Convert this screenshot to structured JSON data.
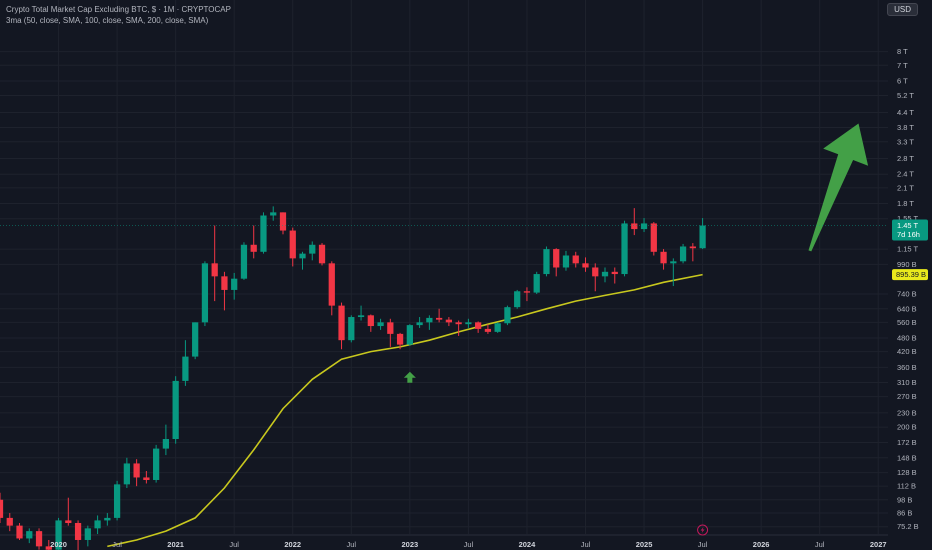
{
  "header": {
    "title": "Crypto Total Market Cap Excluding BTC, $ · 1M · CRYPTOCAP",
    "indicator": "3ma (50, close, SMA, 100, close, SMA, 200, close, SMA)",
    "currency_button": "USD"
  },
  "colors": {
    "background": "#131722",
    "up": "#089981",
    "down": "#f23645",
    "ma": "#c8c81e",
    "arrow": "#43a047"
  },
  "chart_data": {
    "type": "candlestick",
    "y_scale": "log",
    "y_unit": "USD",
    "y_range": [
      70,
      10500
    ],
    "x_range": [
      "2019-07",
      "2027-02"
    ],
    "y_ticks": [
      {
        "label": "8 T",
        "value": 8000
      },
      {
        "label": "7 T",
        "value": 7000
      },
      {
        "label": "6 T",
        "value": 6000
      },
      {
        "label": "5.2 T",
        "value": 5200
      },
      {
        "label": "4.4 T",
        "value": 4400
      },
      {
        "label": "3.8 T",
        "value": 3800
      },
      {
        "label": "3.3 T",
        "value": 3300
      },
      {
        "label": "2.8 T",
        "value": 2800
      },
      {
        "label": "2.4 T",
        "value": 2400
      },
      {
        "label": "2.1 T",
        "value": 2100
      },
      {
        "label": "1.8 T",
        "value": 1800
      },
      {
        "label": "1.55 T",
        "value": 1550
      },
      {
        "label": "1.15 T",
        "value": 1150
      },
      {
        "label": "990 B",
        "value": 990
      },
      {
        "label": "740 B",
        "value": 740
      },
      {
        "label": "640 B",
        "value": 640
      },
      {
        "label": "560 B",
        "value": 560
      },
      {
        "label": "480 B",
        "value": 480
      },
      {
        "label": "420 B",
        "value": 420
      },
      {
        "label": "360 B",
        "value": 360
      },
      {
        "label": "310 B",
        "value": 310
      },
      {
        "label": "270 B",
        "value": 270
      },
      {
        "label": "230 B",
        "value": 230
      },
      {
        "label": "200 B",
        "value": 200
      },
      {
        "label": "172 B",
        "value": 172
      },
      {
        "label": "148 B",
        "value": 148
      },
      {
        "label": "128 B",
        "value": 128
      },
      {
        "label": "112 B",
        "value": 112
      },
      {
        "label": "98 B",
        "value": 98
      },
      {
        "label": "86 B",
        "value": 86
      },
      {
        "label": "75.2 B",
        "value": 75.2
      }
    ],
    "x_ticks": [
      {
        "label": "2020",
        "year": 2020,
        "month": 1,
        "bold": true
      },
      {
        "label": "Jul",
        "year": 2020,
        "month": 7,
        "bold": false
      },
      {
        "label": "2021",
        "year": 2021,
        "month": 1,
        "bold": true
      },
      {
        "label": "Jul",
        "year": 2021,
        "month": 7,
        "bold": false
      },
      {
        "label": "2022",
        "year": 2022,
        "month": 1,
        "bold": true
      },
      {
        "label": "Jul",
        "year": 2022,
        "month": 7,
        "bold": false
      },
      {
        "label": "2023",
        "year": 2023,
        "month": 1,
        "bold": true
      },
      {
        "label": "Jul",
        "year": 2023,
        "month": 7,
        "bold": false
      },
      {
        "label": "2024",
        "year": 2024,
        "month": 1,
        "bold": true
      },
      {
        "label": "Jul",
        "year": 2024,
        "month": 7,
        "bold": false
      },
      {
        "label": "2025",
        "year": 2025,
        "month": 1,
        "bold": true
      },
      {
        "label": "Jul",
        "year": 2025,
        "month": 7,
        "bold": false
      },
      {
        "label": "2026",
        "year": 2026,
        "month": 1,
        "bold": true
      },
      {
        "label": "Jul",
        "year": 2026,
        "month": 7,
        "bold": false
      },
      {
        "label": "2027",
        "year": 2027,
        "month": 1,
        "bold": true
      }
    ],
    "candles": [
      {
        "year": 2019,
        "month": 7,
        "open": 98,
        "high": 105,
        "low": 78,
        "close": 82
      },
      {
        "year": 2019,
        "month": 8,
        "open": 82,
        "high": 86,
        "low": 72,
        "close": 76
      },
      {
        "year": 2019,
        "month": 9,
        "open": 76,
        "high": 78,
        "low": 66,
        "close": 67
      },
      {
        "year": 2019,
        "month": 10,
        "open": 67,
        "high": 74,
        "low": 64,
        "close": 72
      },
      {
        "year": 2019,
        "month": 11,
        "open": 72,
        "high": 74,
        "low": 60,
        "close": 62
      },
      {
        "year": 2019,
        "month": 12,
        "open": 62,
        "high": 66,
        "low": 58,
        "close": 60
      },
      {
        "year": 2020,
        "month": 1,
        "open": 60,
        "high": 82,
        "low": 58,
        "close": 80
      },
      {
        "year": 2020,
        "month": 2,
        "open": 80,
        "high": 100,
        "low": 76,
        "close": 78
      },
      {
        "year": 2020,
        "month": 3,
        "open": 78,
        "high": 80,
        "low": 50,
        "close": 66
      },
      {
        "year": 2020,
        "month": 4,
        "open": 66,
        "high": 76,
        "low": 62,
        "close": 74
      },
      {
        "year": 2020,
        "month": 5,
        "open": 74,
        "high": 84,
        "low": 70,
        "close": 80
      },
      {
        "year": 2020,
        "month": 6,
        "open": 80,
        "high": 86,
        "low": 76,
        "close": 82
      },
      {
        "year": 2020,
        "month": 7,
        "open": 82,
        "high": 118,
        "low": 80,
        "close": 114
      },
      {
        "year": 2020,
        "month": 8,
        "open": 114,
        "high": 148,
        "low": 110,
        "close": 140
      },
      {
        "year": 2020,
        "month": 9,
        "open": 140,
        "high": 146,
        "low": 112,
        "close": 122
      },
      {
        "year": 2020,
        "month": 10,
        "open": 122,
        "high": 130,
        "low": 115,
        "close": 119
      },
      {
        "year": 2020,
        "month": 11,
        "open": 119,
        "high": 168,
        "low": 116,
        "close": 162
      },
      {
        "year": 2020,
        "month": 12,
        "open": 162,
        "high": 205,
        "low": 152,
        "close": 178
      },
      {
        "year": 2021,
        "month": 1,
        "open": 178,
        "high": 330,
        "low": 170,
        "close": 315
      },
      {
        "year": 2021,
        "month": 2,
        "open": 315,
        "high": 470,
        "low": 300,
        "close": 400
      },
      {
        "year": 2021,
        "month": 3,
        "open": 400,
        "high": 560,
        "low": 390,
        "close": 560
      },
      {
        "year": 2021,
        "month": 4,
        "open": 560,
        "high": 1020,
        "low": 540,
        "close": 1000
      },
      {
        "year": 2021,
        "month": 5,
        "open": 1000,
        "high": 1450,
        "low": 690,
        "close": 880
      },
      {
        "year": 2021,
        "month": 6,
        "open": 880,
        "high": 920,
        "low": 630,
        "close": 770
      },
      {
        "year": 2021,
        "month": 7,
        "open": 770,
        "high": 910,
        "low": 700,
        "close": 860
      },
      {
        "year": 2021,
        "month": 8,
        "open": 860,
        "high": 1230,
        "low": 850,
        "close": 1200
      },
      {
        "year": 2021,
        "month": 9,
        "open": 1200,
        "high": 1450,
        "low": 1050,
        "close": 1120
      },
      {
        "year": 2021,
        "month": 10,
        "open": 1120,
        "high": 1650,
        "low": 1100,
        "close": 1600
      },
      {
        "year": 2021,
        "month": 11,
        "open": 1600,
        "high": 1750,
        "low": 1520,
        "close": 1650
      },
      {
        "year": 2021,
        "month": 12,
        "open": 1650,
        "high": 1650,
        "low": 1330,
        "close": 1380
      },
      {
        "year": 2022,
        "month": 1,
        "open": 1380,
        "high": 1420,
        "low": 970,
        "close": 1050
      },
      {
        "year": 2022,
        "month": 2,
        "open": 1050,
        "high": 1120,
        "low": 940,
        "close": 1100
      },
      {
        "year": 2022,
        "month": 3,
        "open": 1100,
        "high": 1240,
        "low": 1030,
        "close": 1200
      },
      {
        "year": 2022,
        "month": 4,
        "open": 1200,
        "high": 1220,
        "low": 980,
        "close": 1000
      },
      {
        "year": 2022,
        "month": 5,
        "open": 1000,
        "high": 1020,
        "low": 600,
        "close": 660
      },
      {
        "year": 2022,
        "month": 6,
        "open": 660,
        "high": 680,
        "low": 430,
        "close": 470
      },
      {
        "year": 2022,
        "month": 7,
        "open": 470,
        "high": 600,
        "low": 460,
        "close": 590
      },
      {
        "year": 2022,
        "month": 8,
        "open": 590,
        "high": 660,
        "low": 570,
        "close": 600
      },
      {
        "year": 2022,
        "month": 9,
        "open": 600,
        "high": 605,
        "low": 510,
        "close": 540
      },
      {
        "year": 2022,
        "month": 10,
        "open": 540,
        "high": 580,
        "low": 520,
        "close": 560
      },
      {
        "year": 2022,
        "month": 11,
        "open": 560,
        "high": 580,
        "low": 440,
        "close": 500
      },
      {
        "year": 2022,
        "month": 12,
        "open": 500,
        "high": 505,
        "low": 430,
        "close": 450
      },
      {
        "year": 2023,
        "month": 1,
        "open": 450,
        "high": 550,
        "low": 445,
        "close": 545
      },
      {
        "year": 2023,
        "month": 2,
        "open": 545,
        "high": 590,
        "low": 530,
        "close": 560
      },
      {
        "year": 2023,
        "month": 3,
        "open": 560,
        "high": 600,
        "low": 520,
        "close": 585
      },
      {
        "year": 2023,
        "month": 4,
        "open": 585,
        "high": 640,
        "low": 560,
        "close": 575
      },
      {
        "year": 2023,
        "month": 5,
        "open": 575,
        "high": 590,
        "low": 540,
        "close": 560
      },
      {
        "year": 2023,
        "month": 6,
        "open": 560,
        "high": 570,
        "low": 490,
        "close": 550
      },
      {
        "year": 2023,
        "month": 7,
        "open": 550,
        "high": 580,
        "low": 530,
        "close": 560
      },
      {
        "year": 2023,
        "month": 8,
        "open": 560,
        "high": 565,
        "low": 505,
        "close": 525
      },
      {
        "year": 2023,
        "month": 9,
        "open": 525,
        "high": 550,
        "low": 500,
        "close": 510
      },
      {
        "year": 2023,
        "month": 10,
        "open": 510,
        "high": 560,
        "low": 505,
        "close": 555
      },
      {
        "year": 2023,
        "month": 11,
        "open": 555,
        "high": 660,
        "low": 545,
        "close": 650
      },
      {
        "year": 2023,
        "month": 12,
        "open": 650,
        "high": 770,
        "low": 640,
        "close": 760
      },
      {
        "year": 2024,
        "month": 1,
        "open": 760,
        "high": 790,
        "low": 690,
        "close": 750
      },
      {
        "year": 2024,
        "month": 2,
        "open": 750,
        "high": 920,
        "low": 740,
        "close": 900
      },
      {
        "year": 2024,
        "month": 3,
        "open": 900,
        "high": 1180,
        "low": 880,
        "close": 1150
      },
      {
        "year": 2024,
        "month": 4,
        "open": 1150,
        "high": 1160,
        "low": 880,
        "close": 960
      },
      {
        "year": 2024,
        "month": 5,
        "open": 960,
        "high": 1130,
        "low": 930,
        "close": 1080
      },
      {
        "year": 2024,
        "month": 6,
        "open": 1080,
        "high": 1120,
        "low": 960,
        "close": 1000
      },
      {
        "year": 2024,
        "month": 7,
        "open": 1000,
        "high": 1060,
        "low": 920,
        "close": 960
      },
      {
        "year": 2024,
        "month": 8,
        "open": 960,
        "high": 1000,
        "low": 760,
        "close": 880
      },
      {
        "year": 2024,
        "month": 9,
        "open": 880,
        "high": 960,
        "low": 830,
        "close": 920
      },
      {
        "year": 2024,
        "month": 10,
        "open": 920,
        "high": 960,
        "low": 820,
        "close": 900
      },
      {
        "year": 2024,
        "month": 11,
        "open": 900,
        "high": 1520,
        "low": 880,
        "close": 1480
      },
      {
        "year": 2024,
        "month": 12,
        "open": 1480,
        "high": 1720,
        "low": 1320,
        "close": 1400
      },
      {
        "year": 2025,
        "month": 1,
        "open": 1400,
        "high": 1560,
        "low": 1360,
        "close": 1480
      },
      {
        "year": 2025,
        "month": 2,
        "open": 1480,
        "high": 1500,
        "low": 1080,
        "close": 1120
      },
      {
        "year": 2025,
        "month": 3,
        "open": 1120,
        "high": 1150,
        "low": 940,
        "close": 1000
      },
      {
        "year": 2025,
        "month": 4,
        "open": 1000,
        "high": 1050,
        "low": 800,
        "close": 1020
      },
      {
        "year": 2025,
        "month": 5,
        "open": 1020,
        "high": 1210,
        "low": 1000,
        "close": 1180
      },
      {
        "year": 2025,
        "month": 6,
        "open": 1180,
        "high": 1220,
        "low": 1020,
        "close": 1160
      },
      {
        "year": 2025,
        "month": 7,
        "open": 1160,
        "high": 1560,
        "low": 1150,
        "close": 1450
      }
    ],
    "ma_series": {
      "name": "SMA 50",
      "points": [
        {
          "year": 2020,
          "month": 6,
          "value": 62
        },
        {
          "year": 2020,
          "month": 9,
          "value": 66
        },
        {
          "year": 2020,
          "month": 12,
          "value": 72
        },
        {
          "year": 2021,
          "month": 3,
          "value": 82
        },
        {
          "year": 2021,
          "month": 6,
          "value": 110
        },
        {
          "year": 2021,
          "month": 9,
          "value": 160
        },
        {
          "year": 2021,
          "month": 12,
          "value": 240
        },
        {
          "year": 2022,
          "month": 3,
          "value": 320
        },
        {
          "year": 2022,
          "month": 6,
          "value": 390
        },
        {
          "year": 2022,
          "month": 9,
          "value": 420
        },
        {
          "year": 2022,
          "month": 12,
          "value": 440
        },
        {
          "year": 2023,
          "month": 3,
          "value": 470
        },
        {
          "year": 2023,
          "month": 6,
          "value": 510
        },
        {
          "year": 2023,
          "month": 9,
          "value": 550
        },
        {
          "year": 2023,
          "month": 12,
          "value": 590
        },
        {
          "year": 2024,
          "month": 3,
          "value": 640
        },
        {
          "year": 2024,
          "month": 6,
          "value": 690
        },
        {
          "year": 2024,
          "month": 9,
          "value": 730
        },
        {
          "year": 2024,
          "month": 12,
          "value": 770
        },
        {
          "year": 2025,
          "month": 3,
          "value": 830
        },
        {
          "year": 2025,
          "month": 7,
          "value": 895.39
        }
      ]
    },
    "last_price_label": "1.45 T",
    "last_price_value": 1450,
    "countdown_label": "7d 16h",
    "ma_value_label": "895.39 B",
    "ma_value": 895.39,
    "annotations": [
      {
        "type": "small-up-arrow",
        "year": 2023,
        "month": 1,
        "value": 325
      },
      {
        "type": "big-up-arrow",
        "from": {
          "year": 2026,
          "month": 6,
          "value": 1130
        },
        "to": {
          "year": 2026,
          "month": 12,
          "value": 3950
        }
      }
    ]
  }
}
